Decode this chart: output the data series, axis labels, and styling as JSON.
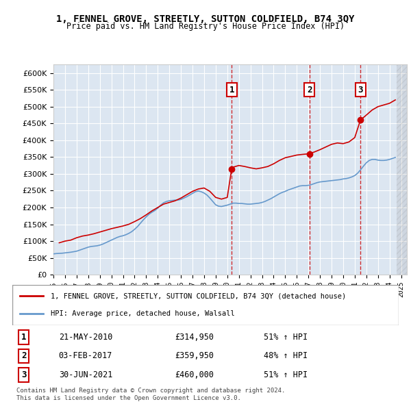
{
  "title": "1, FENNEL GROVE, STREETLY, SUTTON COLDFIELD, B74 3QY",
  "subtitle": "Price paid vs. HM Land Registry's House Price Index (HPI)",
  "legend_line1": "1, FENNEL GROVE, STREETLY, SUTTON COLDFIELD, B74 3QY (detached house)",
  "legend_line2": "HPI: Average price, detached house, Walsall",
  "footer1": "Contains HM Land Registry data © Crown copyright and database right 2024.",
  "footer2": "This data is licensed under the Open Government Licence v3.0.",
  "sale_events": [
    {
      "num": 1,
      "date": "21-MAY-2010",
      "price": 314950,
      "pct": "51% ↑ HPI",
      "year": 2010.38
    },
    {
      "num": 2,
      "date": "03-FEB-2017",
      "price": 359950,
      "pct": "48% ↑ HPI",
      "year": 2017.09
    },
    {
      "num": 3,
      "date": "30-JUN-2021",
      "price": 460000,
      "pct": "51% ↑ HPI",
      "year": 2021.49
    }
  ],
  "hpi_color": "#6699cc",
  "price_color": "#cc0000",
  "bg_color": "#dce6f1",
  "plot_bg": "#ffffff",
  "ylim": [
    0,
    625000
  ],
  "xlim_start": 1995.0,
  "xlim_end": 2025.5,
  "hpi_data": {
    "years": [
      1995.0,
      1995.25,
      1995.5,
      1995.75,
      1996.0,
      1996.25,
      1996.5,
      1996.75,
      1997.0,
      1997.25,
      1997.5,
      1997.75,
      1998.0,
      1998.25,
      1998.5,
      1998.75,
      1999.0,
      1999.25,
      1999.5,
      1999.75,
      2000.0,
      2000.25,
      2000.5,
      2000.75,
      2001.0,
      2001.25,
      2001.5,
      2001.75,
      2002.0,
      2002.25,
      2002.5,
      2002.75,
      2003.0,
      2003.25,
      2003.5,
      2003.75,
      2004.0,
      2004.25,
      2004.5,
      2004.75,
      2005.0,
      2005.25,
      2005.5,
      2005.75,
      2006.0,
      2006.25,
      2006.5,
      2006.75,
      2007.0,
      2007.25,
      2007.5,
      2007.75,
      2008.0,
      2008.25,
      2008.5,
      2008.75,
      2009.0,
      2009.25,
      2009.5,
      2009.75,
      2010.0,
      2010.25,
      2010.5,
      2010.75,
      2011.0,
      2011.25,
      2011.5,
      2011.75,
      2012.0,
      2012.25,
      2012.5,
      2012.75,
      2013.0,
      2013.25,
      2013.5,
      2013.75,
      2014.0,
      2014.25,
      2014.5,
      2014.75,
      2015.0,
      2015.25,
      2015.5,
      2015.75,
      2016.0,
      2016.25,
      2016.5,
      2016.75,
      2017.0,
      2017.25,
      2017.5,
      2017.75,
      2018.0,
      2018.25,
      2018.5,
      2018.75,
      2019.0,
      2019.25,
      2019.5,
      2019.75,
      2020.0,
      2020.25,
      2020.5,
      2020.75,
      2021.0,
      2021.25,
      2021.5,
      2021.75,
      2022.0,
      2022.25,
      2022.5,
      2022.75,
      2023.0,
      2023.25,
      2023.5,
      2023.75,
      2024.0,
      2024.25,
      2024.5
    ],
    "values": [
      62000,
      63000,
      63500,
      64000,
      65000,
      66000,
      67000,
      68500,
      70000,
      73000,
      76000,
      79000,
      82000,
      84000,
      85000,
      86000,
      88000,
      91000,
      95000,
      99000,
      103000,
      107000,
      111000,
      114000,
      116000,
      119000,
      123000,
      128000,
      135000,
      143000,
      153000,
      163000,
      172000,
      180000,
      186000,
      191000,
      198000,
      207000,
      214000,
      218000,
      220000,
      221000,
      222000,
      222000,
      224000,
      228000,
      232000,
      237000,
      242000,
      247000,
      249000,
      247000,
      243000,
      237000,
      228000,
      218000,
      208000,
      204000,
      203000,
      205000,
      207000,
      210000,
      213000,
      213000,
      212000,
      212000,
      211000,
      210000,
      210000,
      211000,
      212000,
      213000,
      215000,
      218000,
      222000,
      226000,
      231000,
      236000,
      241000,
      245000,
      248000,
      252000,
      255000,
      258000,
      261000,
      264000,
      265000,
      265000,
      266000,
      268000,
      271000,
      274000,
      276000,
      277000,
      278000,
      279000,
      280000,
      281000,
      282000,
      283000,
      285000,
      286000,
      288000,
      291000,
      295000,
      302000,
      312000,
      323000,
      333000,
      340000,
      343000,
      343000,
      341000,
      340000,
      340000,
      341000,
      343000,
      346000,
      349000
    ]
  },
  "price_data": {
    "years": [
      1995.5,
      1996.0,
      1996.5,
      1997.0,
      1997.5,
      1998.0,
      1998.5,
      1999.0,
      1999.5,
      2000.0,
      2000.5,
      2001.0,
      2001.5,
      2002.0,
      2002.5,
      2003.0,
      2003.5,
      2004.0,
      2004.5,
      2005.0,
      2005.5,
      2006.0,
      2006.5,
      2007.0,
      2007.5,
      2008.0,
      2008.5,
      2009.0,
      2009.5,
      2010.0,
      2010.38,
      2010.5,
      2011.0,
      2011.5,
      2012.0,
      2012.5,
      2013.0,
      2013.5,
      2014.0,
      2014.5,
      2015.0,
      2015.5,
      2016.0,
      2016.5,
      2017.09,
      2017.5,
      2018.0,
      2018.5,
      2019.0,
      2019.5,
      2020.0,
      2020.5,
      2021.0,
      2021.49,
      2022.0,
      2022.5,
      2023.0,
      2023.5,
      2024.0,
      2024.5
    ],
    "values": [
      95000,
      100000,
      103000,
      110000,
      115000,
      118000,
      122000,
      127000,
      132000,
      137000,
      141000,
      145000,
      150000,
      158000,
      167000,
      178000,
      190000,
      200000,
      210000,
      215000,
      220000,
      228000,
      238000,
      248000,
      255000,
      258000,
      248000,
      230000,
      225000,
      230000,
      314950,
      320000,
      325000,
      322000,
      318000,
      315000,
      318000,
      322000,
      330000,
      340000,
      348000,
      352000,
      356000,
      358000,
      359950,
      365000,
      372000,
      380000,
      388000,
      392000,
      390000,
      395000,
      408000,
      460000,
      475000,
      490000,
      500000,
      505000,
      510000,
      520000
    ]
  }
}
